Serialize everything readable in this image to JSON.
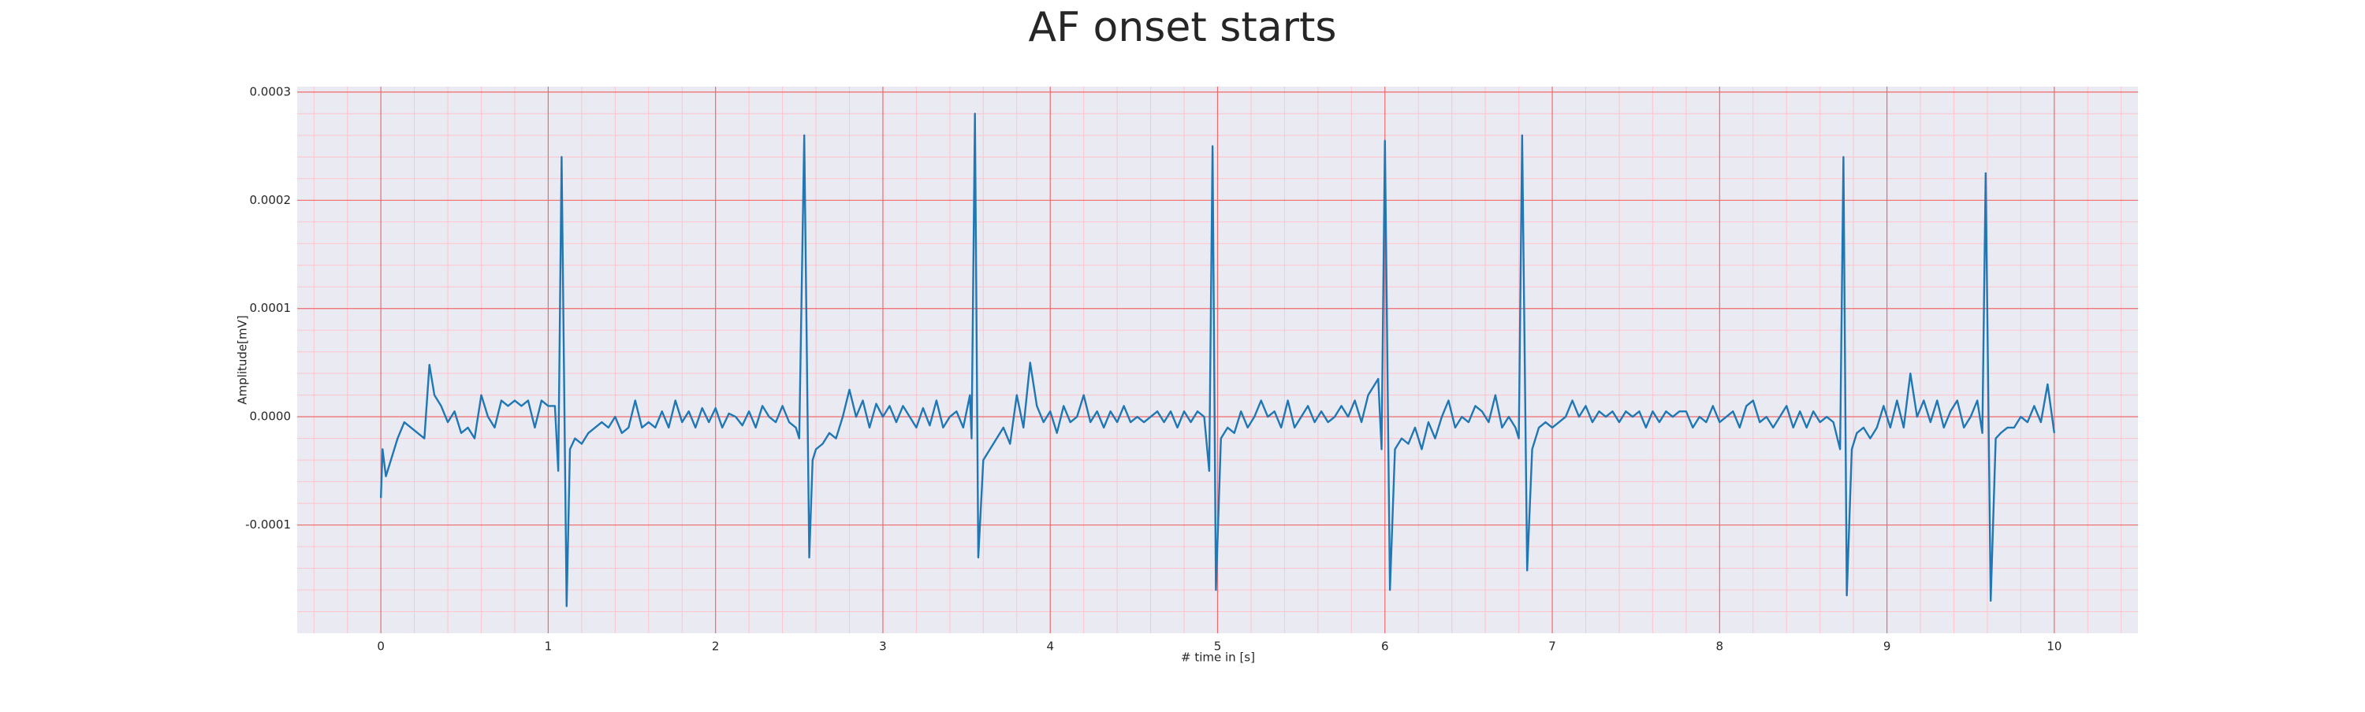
{
  "chart_data": {
    "type": "line",
    "title": "AF onset starts",
    "xlabel": "# time in [s]",
    "ylabel": "Amplitude[mV]",
    "color": "#1f77b4",
    "grid": true,
    "minor_grid": true,
    "xlim": [
      -0.5,
      10.5
    ],
    "ylim": [
      -0.0002,
      0.000305
    ],
    "xticks": [
      0,
      1,
      2,
      3,
      4,
      5,
      6,
      7,
      8,
      9,
      10
    ],
    "yticks": [
      {
        "value": -0.0001,
        "label": "-0.0001"
      },
      {
        "value": 0,
        "label": "0.0000"
      },
      {
        "value": 0.0001,
        "label": "0.0001"
      },
      {
        "value": 0.0002,
        "label": "0.0002"
      },
      {
        "value": 0.0003,
        "label": "0.0003"
      }
    ],
    "x": [
      0,
      0.01,
      0.03,
      0.06,
      0.1,
      0.14,
      0.18,
      0.22,
      0.26,
      0.29,
      0.32,
      0.36,
      0.4,
      0.44,
      0.48,
      0.52,
      0.56,
      0.6,
      0.64,
      0.68,
      0.72,
      0.76,
      0.8,
      0.84,
      0.88,
      0.92,
      0.96,
      1.0,
      1.04,
      1.06,
      1.08,
      1.11,
      1.13,
      1.16,
      1.2,
      1.24,
      1.28,
      1.32,
      1.36,
      1.4,
      1.44,
      1.48,
      1.52,
      1.56,
      1.6,
      1.64,
      1.68,
      1.72,
      1.76,
      1.8,
      1.84,
      1.88,
      1.92,
      1.96,
      2.0,
      2.04,
      2.08,
      2.12,
      2.16,
      2.2,
      2.24,
      2.28,
      2.32,
      2.36,
      2.4,
      2.44,
      2.48,
      2.5,
      2.53,
      2.56,
      2.58,
      2.6,
      2.64,
      2.68,
      2.72,
      2.76,
      2.8,
      2.84,
      2.88,
      2.92,
      2.96,
      3.0,
      3.04,
      3.08,
      3.12,
      3.16,
      3.2,
      3.24,
      3.28,
      3.32,
      3.36,
      3.4,
      3.44,
      3.48,
      3.52,
      3.53,
      3.55,
      3.57,
      3.6,
      3.64,
      3.68,
      3.72,
      3.76,
      3.8,
      3.84,
      3.88,
      3.92,
      3.96,
      4.0,
      4.04,
      4.08,
      4.12,
      4.16,
      4.2,
      4.24,
      4.28,
      4.32,
      4.36,
      4.4,
      4.44,
      4.48,
      4.52,
      4.56,
      4.6,
      4.64,
      4.68,
      4.72,
      4.76,
      4.8,
      4.84,
      4.88,
      4.92,
      4.95,
      4.97,
      4.99,
      5.02,
      5.06,
      5.1,
      5.14,
      5.18,
      5.22,
      5.26,
      5.3,
      5.34,
      5.38,
      5.42,
      5.46,
      5.5,
      5.54,
      5.58,
      5.62,
      5.66,
      5.7,
      5.74,
      5.78,
      5.82,
      5.86,
      5.9,
      5.94,
      5.96,
      5.98,
      6.0,
      6.03,
      6.06,
      6.1,
      6.14,
      6.18,
      6.22,
      6.26,
      6.3,
      6.34,
      6.38,
      6.42,
      6.46,
      6.5,
      6.54,
      6.58,
      6.62,
      6.66,
      6.7,
      6.74,
      6.78,
      6.8,
      6.82,
      6.85,
      6.88,
      6.92,
      6.96,
      7.0,
      7.04,
      7.08,
      7.12,
      7.16,
      7.2,
      7.24,
      7.28,
      7.32,
      7.36,
      7.4,
      7.44,
      7.48,
      7.52,
      7.56,
      7.6,
      7.64,
      7.68,
      7.72,
      7.76,
      7.8,
      7.84,
      7.88,
      7.92,
      7.96,
      8.0,
      8.04,
      8.08,
      8.12,
      8.16,
      8.2,
      8.24,
      8.28,
      8.32,
      8.36,
      8.4,
      8.44,
      8.48,
      8.52,
      8.56,
      8.6,
      8.64,
      8.68,
      8.72,
      8.74,
      8.76,
      8.79,
      8.82,
      8.86,
      8.9,
      8.94,
      8.98,
      9.02,
      9.06,
      9.1,
      9.14,
      9.18,
      9.22,
      9.26,
      9.3,
      9.34,
      9.38,
      9.42,
      9.46,
      9.5,
      9.54,
      9.57,
      9.59,
      9.62,
      9.65,
      9.68,
      9.72,
      9.76,
      9.8,
      9.84,
      9.88,
      9.92,
      9.96,
      10.0
    ],
    "values": [
      -7.5e-05,
      -3e-05,
      -5.5e-05,
      -4e-05,
      -2e-05,
      -5e-06,
      -1e-05,
      -1.5e-05,
      -2e-05,
      4.8e-05,
      2e-05,
      1e-05,
      -5e-06,
      5e-06,
      -1.5e-05,
      -1e-05,
      -2e-05,
      2e-05,
      0,
      -1e-05,
      1.5e-05,
      1e-05,
      1.5e-05,
      1e-05,
      1.5e-05,
      -1e-05,
      1.5e-05,
      1e-05,
      1e-05,
      -5e-05,
      0.00024,
      -0.000175,
      -3e-05,
      -2e-05,
      -2.5e-05,
      -1.5e-05,
      -1e-05,
      -5e-06,
      -1e-05,
      0,
      -1.5e-05,
      -1e-05,
      1.5e-05,
      -1e-05,
      -5e-06,
      -1e-05,
      5e-06,
      -1e-05,
      1.5e-05,
      -5e-06,
      5e-06,
      -1e-05,
      8e-06,
      -5e-06,
      8e-06,
      -1e-05,
      3e-06,
      0,
      -8e-06,
      5e-06,
      -1e-05,
      1e-05,
      0,
      -5e-06,
      1e-05,
      -5e-06,
      -1e-05,
      -2e-05,
      0.00026,
      -0.00013,
      -4e-05,
      -3e-05,
      -2.5e-05,
      -1.5e-05,
      -2e-05,
      0,
      2.5e-05,
      0,
      1.5e-05,
      -1e-05,
      1.2e-05,
      0,
      1e-05,
      -5e-06,
      1e-05,
      0,
      -1e-05,
      8e-06,
      -8e-06,
      1.5e-05,
      -1e-05,
      0,
      5e-06,
      -1e-05,
      2e-05,
      -2e-05,
      0.00028,
      -0.00013,
      -4e-05,
      -3e-05,
      -2e-05,
      -1e-05,
      -2.5e-05,
      2e-05,
      -1e-05,
      5e-05,
      1e-05,
      -5e-06,
      5e-06,
      -1.5e-05,
      1e-05,
      -5e-06,
      0,
      2e-05,
      -5e-06,
      5e-06,
      -1e-05,
      5e-06,
      -5e-06,
      1e-05,
      -5e-06,
      0,
      -5e-06,
      0,
      5e-06,
      -5e-06,
      5e-06,
      -1e-05,
      5e-06,
      -5e-06,
      5e-06,
      0,
      -5e-05,
      0.00025,
      -0.00016,
      -2e-05,
      -1e-05,
      -1.5e-05,
      5e-06,
      -1e-05,
      0,
      1.5e-05,
      0,
      5e-06,
      -1e-05,
      1.5e-05,
      -1e-05,
      0,
      1e-05,
      -5e-06,
      5e-06,
      -5e-06,
      0,
      1e-05,
      0,
      1.5e-05,
      -5e-06,
      2e-05,
      3e-05,
      3.5e-05,
      -3e-05,
      0.000255,
      -0.00016,
      -3e-05,
      -2e-05,
      -2.5e-05,
      -1e-05,
      -3e-05,
      -5e-06,
      -2e-05,
      0,
      1.5e-05,
      -1e-05,
      0,
      -5e-06,
      1e-05,
      5e-06,
      -5e-06,
      2e-05,
      -1e-05,
      0,
      -1e-05,
      -2e-05,
      0.00026,
      -0.000142,
      -3e-05,
      -1e-05,
      -5e-06,
      -1e-05,
      -5e-06,
      0,
      1.5e-05,
      0,
      1e-05,
      -5e-06,
      5e-06,
      0,
      5e-06,
      -5e-06,
      5e-06,
      0,
      5e-06,
      -1e-05,
      5e-06,
      -5e-06,
      5e-06,
      0,
      5e-06,
      5e-06,
      -1e-05,
      0,
      -5e-06,
      1e-05,
      -5e-06,
      0,
      5e-06,
      -1e-05,
      1e-05,
      1.5e-05,
      -5e-06,
      0,
      -1e-05,
      0,
      1e-05,
      -1e-05,
      5e-06,
      -1e-05,
      5e-06,
      -5e-06,
      0,
      -5e-06,
      -3e-05,
      0.00024,
      -0.000165,
      -3e-05,
      -1.5e-05,
      -1e-05,
      -2e-05,
      -1e-05,
      1e-05,
      -1e-05,
      1.5e-05,
      -1e-05,
      4e-05,
      0,
      1.5e-05,
      -5e-06,
      1.5e-05,
      -1e-05,
      5e-06,
      1.5e-05,
      -1e-05,
      0,
      1.5e-05,
      -1.5e-05,
      0.000225,
      -0.00017,
      -2e-05,
      -1.5e-05,
      -1e-05,
      -1e-05,
      0,
      -5e-06,
      1e-05,
      -5e-06,
      3e-05,
      -1.5e-05
    ]
  }
}
